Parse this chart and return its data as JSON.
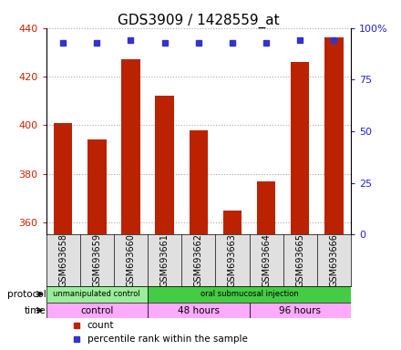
{
  "title": "GDS3909 / 1428559_at",
  "samples": [
    "GSM693658",
    "GSM693659",
    "GSM693660",
    "GSM693661",
    "GSM693662",
    "GSM693663",
    "GSM693664",
    "GSM693665",
    "GSM693666"
  ],
  "counts": [
    401,
    394,
    427,
    412,
    398,
    365,
    377,
    426,
    436
  ],
  "percentile_ranks": [
    93,
    93,
    94,
    93,
    93,
    93,
    93,
    94,
    94
  ],
  "ylim_left": [
    355,
    440
  ],
  "ylim_right": [
    0,
    100
  ],
  "yticks_left": [
    360,
    380,
    400,
    420,
    440
  ],
  "yticks_right": [
    0,
    25,
    50,
    75,
    100
  ],
  "bar_color": "#bb2200",
  "dot_color": "#3333cc",
  "protocol_groups": [
    {
      "label": "unmanipulated control",
      "start": 0,
      "end": 3,
      "color": "#99ee99"
    },
    {
      "label": "oral submucosal injection",
      "start": 3,
      "end": 9,
      "color": "#44cc44"
    }
  ],
  "time_groups": [
    {
      "label": "control",
      "start": 0,
      "end": 3,
      "color": "#ffaaff"
    },
    {
      "label": "48 hours",
      "start": 3,
      "end": 6,
      "color": "#ffaaff"
    },
    {
      "label": "96 hours",
      "start": 6,
      "end": 9,
      "color": "#ffaaff"
    }
  ],
  "legend_count_color": "#bb2200",
  "legend_dot_color": "#3333cc",
  "grid_color": "#aaaaaa",
  "label_color_left": "#cc2200",
  "label_color_right": "#2222cc",
  "title_fontsize": 11,
  "tick_fontsize": 8,
  "sample_fontsize": 7,
  "annotation_fontsize": 7.5
}
